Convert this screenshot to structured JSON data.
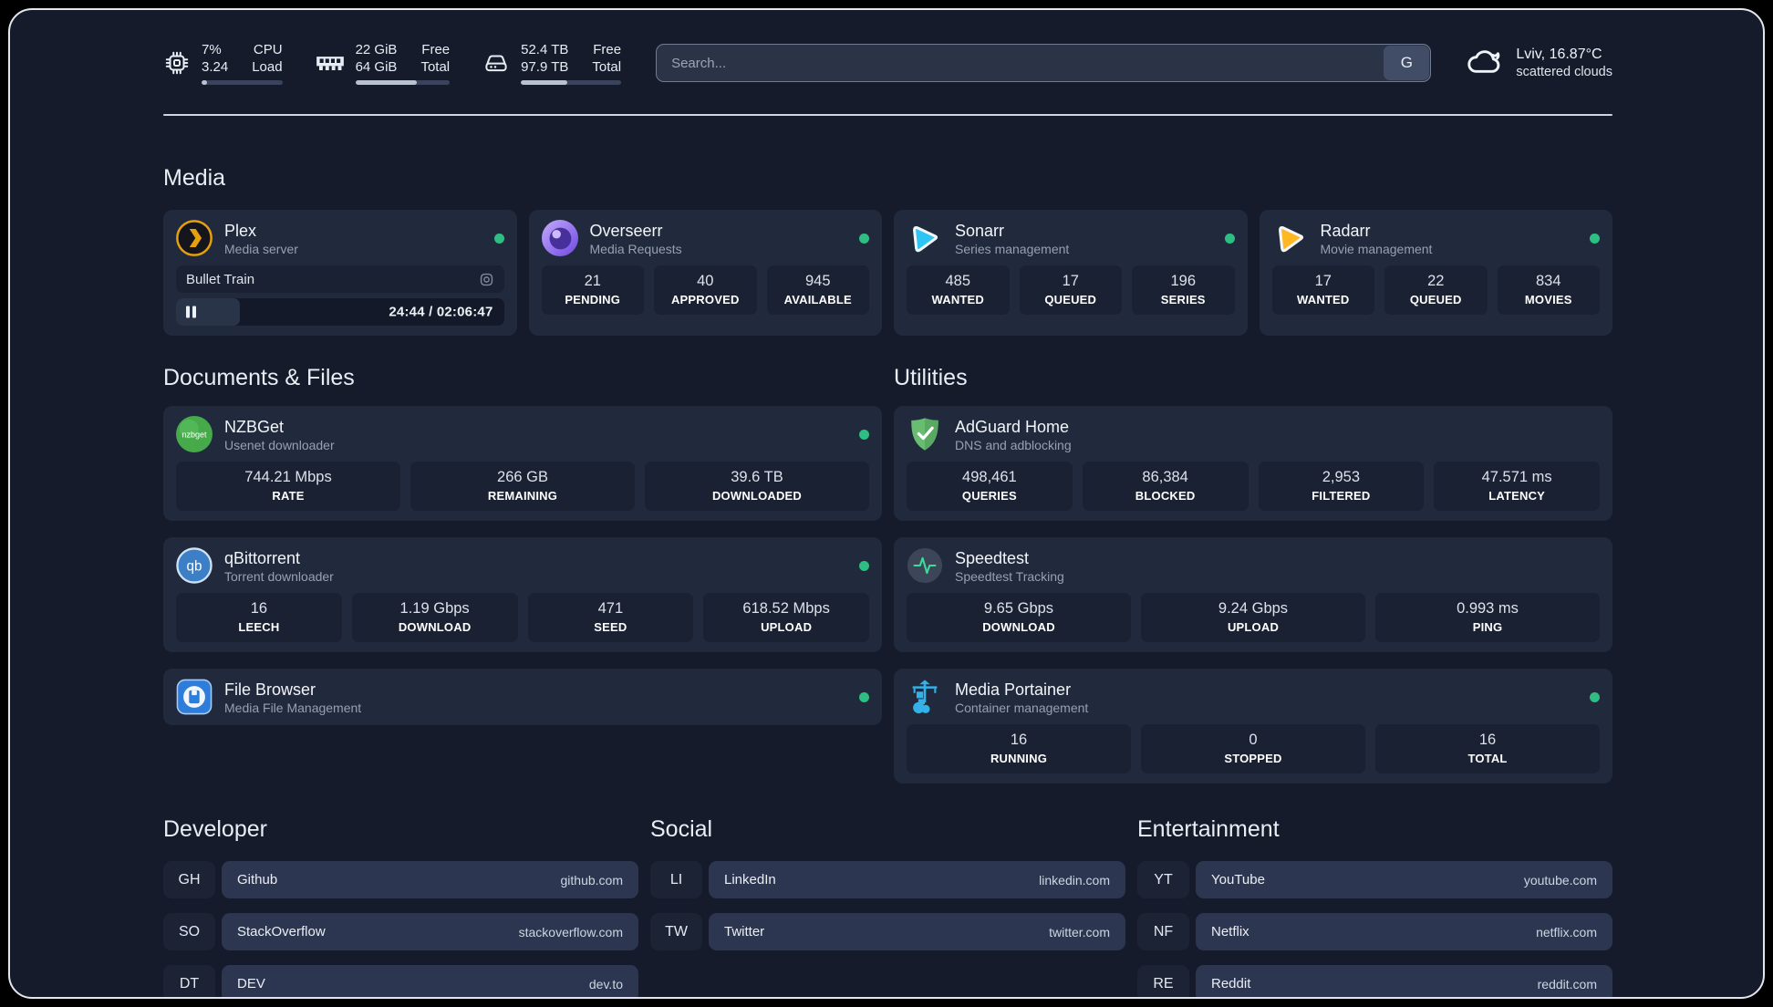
{
  "colors": {
    "accent_green": "#2ebe84",
    "frame_border": "#e3e6ec",
    "background": "#151b2b"
  },
  "topbar": {
    "stats": [
      {
        "icon": "cpu-icon",
        "value1": "7%",
        "value2": "3.24",
        "label1": "CPU",
        "label2": "Load",
        "progress": 7
      },
      {
        "icon": "memory-icon",
        "value1": "22 GiB",
        "value2": "64 GiB",
        "label1": "Free",
        "label2": "Total",
        "progress": 65
      },
      {
        "icon": "disk-icon",
        "value1": "52.4 TB",
        "value2": "97.9 TB",
        "label1": "Free",
        "label2": "Total",
        "progress": 46
      }
    ],
    "search": {
      "placeholder": "Search...",
      "button_label": "G"
    },
    "weather": {
      "location": "Lviv, 16.87°C",
      "condition": "scattered clouds"
    }
  },
  "media": {
    "title": "Media",
    "plex": {
      "name": "Plex",
      "description": "Media server",
      "now_playing": "Bullet Train",
      "time": "24:44 / 02:06:47",
      "progress_percent": 19.5
    },
    "overseerr": {
      "name": "Overseerr",
      "description": "Media Requests",
      "stats": [
        {
          "value": "21",
          "label": "PENDING"
        },
        {
          "value": "40",
          "label": "APPROVED"
        },
        {
          "value": "945",
          "label": "AVAILABLE"
        }
      ]
    },
    "sonarr": {
      "name": "Sonarr",
      "description": "Series management",
      "stats": [
        {
          "value": "485",
          "label": "WANTED"
        },
        {
          "value": "17",
          "label": "QUEUED"
        },
        {
          "value": "196",
          "label": "SERIES"
        }
      ]
    },
    "radarr": {
      "name": "Radarr",
      "description": "Movie management",
      "stats": [
        {
          "value": "17",
          "label": "WANTED"
        },
        {
          "value": "22",
          "label": "QUEUED"
        },
        {
          "value": "834",
          "label": "MOVIES"
        }
      ]
    }
  },
  "documents": {
    "title": "Documents & Files",
    "nzbget": {
      "name": "NZBGet",
      "description": "Usenet downloader",
      "stats": [
        {
          "value": "744.21 Mbps",
          "label": "RATE"
        },
        {
          "value": "266 GB",
          "label": "REMAINING"
        },
        {
          "value": "39.6 TB",
          "label": "DOWNLOADED"
        }
      ]
    },
    "qbittorrent": {
      "name": "qBittorrent",
      "description": "Torrent downloader",
      "stats": [
        {
          "value": "16",
          "label": "LEECH"
        },
        {
          "value": "1.19 Gbps",
          "label": "DOWNLOAD"
        },
        {
          "value": "471",
          "label": "SEED"
        },
        {
          "value": "618.52 Mbps",
          "label": "UPLOAD"
        }
      ]
    },
    "filebrowser": {
      "name": "File Browser",
      "description": "Media File Management"
    }
  },
  "utilities": {
    "title": "Utilities",
    "adguard": {
      "name": "AdGuard Home",
      "description": "DNS and adblocking",
      "stats": [
        {
          "value": "498,461",
          "label": "QUERIES"
        },
        {
          "value": "86,384",
          "label": "BLOCKED"
        },
        {
          "value": "2,953",
          "label": "FILTERED"
        },
        {
          "value": "47.571 ms",
          "label": "LATENCY"
        }
      ]
    },
    "speedtest": {
      "name": "Speedtest",
      "description": "Speedtest Tracking",
      "stats": [
        {
          "value": "9.65 Gbps",
          "label": "DOWNLOAD"
        },
        {
          "value": "9.24 Gbps",
          "label": "UPLOAD"
        },
        {
          "value": "0.993 ms",
          "label": "PING"
        }
      ]
    },
    "portainer": {
      "name": "Media Portainer",
      "description": "Container management",
      "stats": [
        {
          "value": "16",
          "label": "RUNNING"
        },
        {
          "value": "0",
          "label": "STOPPED"
        },
        {
          "value": "16",
          "label": "TOTAL"
        }
      ]
    }
  },
  "bookmarks": {
    "developer": {
      "title": "Developer",
      "items": [
        {
          "abbr": "GH",
          "name": "Github",
          "url": "github.com"
        },
        {
          "abbr": "SO",
          "name": "StackOverflow",
          "url": "stackoverflow.com"
        },
        {
          "abbr": "DT",
          "name": "DEV",
          "url": "dev.to"
        }
      ]
    },
    "social": {
      "title": "Social",
      "items": [
        {
          "abbr": "LI",
          "name": "LinkedIn",
          "url": "linkedin.com"
        },
        {
          "abbr": "TW",
          "name": "Twitter",
          "url": "twitter.com"
        }
      ]
    },
    "entertainment": {
      "title": "Entertainment",
      "items": [
        {
          "abbr": "YT",
          "name": "YouTube",
          "url": "youtube.com"
        },
        {
          "abbr": "NF",
          "name": "Netflix",
          "url": "netflix.com"
        },
        {
          "abbr": "RE",
          "name": "Reddit",
          "url": "reddit.com"
        }
      ]
    }
  }
}
